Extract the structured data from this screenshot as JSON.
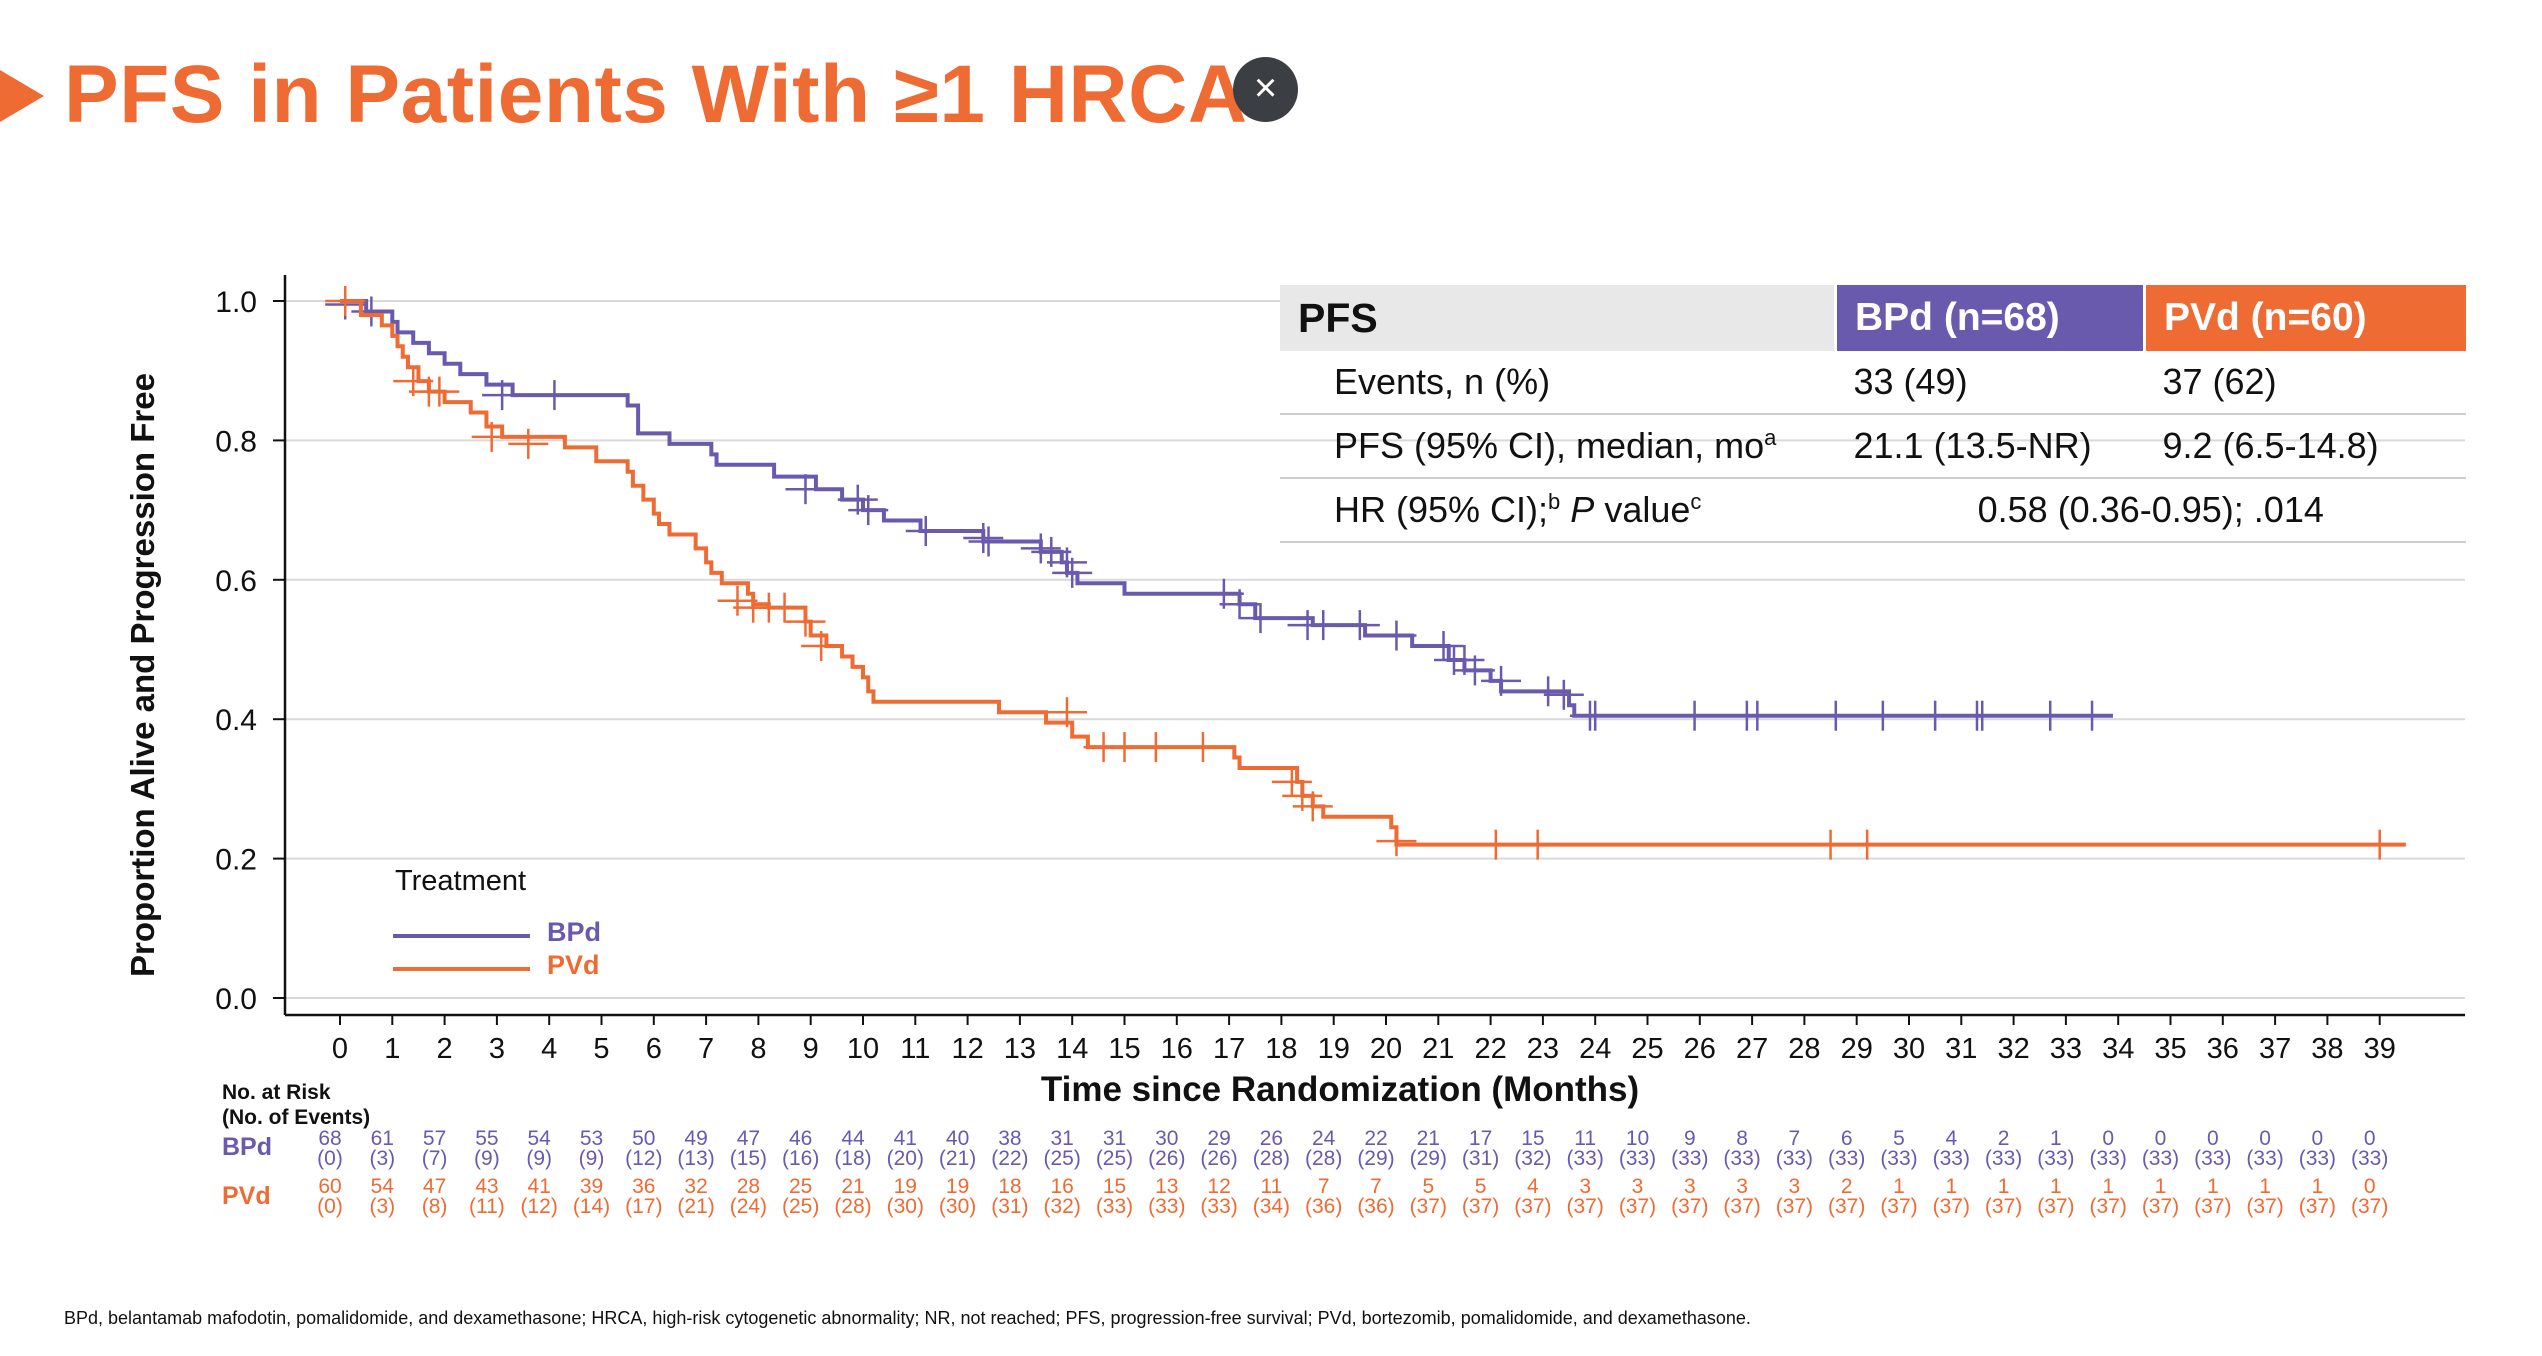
{
  "header": {
    "title": "PFS in Patients With ≥1 HRCA",
    "close_label": "×"
  },
  "table": {
    "header": [
      "PFS",
      "BPd (n=68)",
      "PVd (n=60)"
    ],
    "rows": [
      {
        "label": "Events, n (%)",
        "bpd": "33 (49)",
        "pvd": "37 (62)"
      },
      {
        "label": "PFS (95% CI), median, mo",
        "label_sup": "a",
        "bpd": "21.1 (13.5-NR)",
        "pvd": "9.2 (6.5-14.8)"
      },
      {
        "label_part1": "HR (95% CI);",
        "sup1": "b",
        "label_italic": "P",
        "label_part2": " value",
        "sup2": "c",
        "value": "0.58 (0.36-0.95); .014"
      }
    ]
  },
  "legend": {
    "title": "Treatment",
    "items": [
      {
        "label": "BPd",
        "color": "#6a5aad"
      },
      {
        "label": "PVd",
        "color": "#ee6b34"
      }
    ]
  },
  "risk_table": {
    "heading_line1": "No. at Risk",
    "heading_line2": "(No. of Events)",
    "bpd_label": "BPd",
    "pvd_label": "PVd",
    "bpd_at_risk": [
      "68",
      "61",
      "57",
      "55",
      "54",
      "53",
      "50",
      "49",
      "47",
      "46",
      "44",
      "41",
      "40",
      "38",
      "31",
      "31",
      "30",
      "29",
      "26",
      "24",
      "22",
      "21",
      "17",
      "15",
      "11",
      "10",
      "9",
      "8",
      "7",
      "6",
      "5",
      "4",
      "2",
      "1",
      "0",
      "0",
      "0",
      "0",
      "0",
      "0"
    ],
    "bpd_events": [
      "(0)",
      "(3)",
      "(7)",
      "(9)",
      "(9)",
      "(9)",
      "(12)",
      "(13)",
      "(15)",
      "(16)",
      "(18)",
      "(20)",
      "(21)",
      "(22)",
      "(25)",
      "(25)",
      "(26)",
      "(26)",
      "(28)",
      "(28)",
      "(29)",
      "(29)",
      "(31)",
      "(32)",
      "(33)",
      "(33)",
      "(33)",
      "(33)",
      "(33)",
      "(33)",
      "(33)",
      "(33)",
      "(33)",
      "(33)",
      "(33)",
      "(33)",
      "(33)",
      "(33)",
      "(33)",
      "(33)"
    ],
    "pvd_at_risk": [
      "60",
      "54",
      "47",
      "43",
      "41",
      "39",
      "36",
      "32",
      "28",
      "25",
      "21",
      "19",
      "19",
      "18",
      "16",
      "15",
      "13",
      "12",
      "11",
      "7",
      "7",
      "5",
      "5",
      "4",
      "3",
      "3",
      "3",
      "3",
      "3",
      "2",
      "1",
      "1",
      "1",
      "1",
      "1",
      "1",
      "1",
      "1",
      "1",
      "0"
    ],
    "pvd_events": [
      "(0)",
      "(3)",
      "(8)",
      "(11)",
      "(12)",
      "(14)",
      "(17)",
      "(21)",
      "(24)",
      "(25)",
      "(28)",
      "(30)",
      "(30)",
      "(31)",
      "(32)",
      "(33)",
      "(33)",
      "(33)",
      "(34)",
      "(36)",
      "(36)",
      "(37)",
      "(37)",
      "(37)",
      "(37)",
      "(37)",
      "(37)",
      "(37)",
      "(37)",
      "(37)",
      "(37)",
      "(37)",
      "(37)",
      "(37)",
      "(37)",
      "(37)",
      "(37)",
      "(37)",
      "(37)",
      "(37)"
    ]
  },
  "footnote": "BPd, belantamab mafodotin, pomalidomide, and dexamethasone; HRCA, high-risk cytogenetic abnormality; NR, not reached; PFS, progression-free survival; PVd, bortezomib, pomalidomide, and dexamethasone.",
  "chart_data": {
    "type": "line",
    "subtype": "kaplan-meier step",
    "xlabel": "Time since Randomization (Months)",
    "ylabel": "Proportion Alive and Progression Free",
    "xlim": [
      -1,
      40.5
    ],
    "ylim": [
      0,
      1.02
    ],
    "xticks": [
      0,
      1,
      2,
      3,
      4,
      5,
      6,
      7,
      8,
      9,
      10,
      11,
      12,
      13,
      14,
      15,
      16,
      17,
      18,
      19,
      20,
      21,
      22,
      23,
      24,
      25,
      26,
      27,
      28,
      29,
      30,
      31,
      32,
      33,
      34,
      35,
      36,
      37,
      38,
      39
    ],
    "yticks": [
      "0.0",
      "0.2",
      "0.4",
      "0.6",
      "0.8",
      "1.0"
    ],
    "grid": "horizontal",
    "legend_position": "bottom-left",
    "series": [
      {
        "name": "BPd",
        "color": "#6a5aad",
        "points": [
          [
            0,
            1.0
          ],
          [
            0.5,
            0.985
          ],
          [
            1,
            0.97
          ],
          [
            1.1,
            0.955
          ],
          [
            1.4,
            0.94
          ],
          [
            1.7,
            0.925
          ],
          [
            2.0,
            0.91
          ],
          [
            2.3,
            0.895
          ],
          [
            2.8,
            0.88
          ],
          [
            3.3,
            0.865
          ],
          [
            5.5,
            0.85
          ],
          [
            5.7,
            0.81
          ],
          [
            6.2,
            0.81
          ],
          [
            6.3,
            0.795
          ],
          [
            7.1,
            0.78
          ],
          [
            7.2,
            0.765
          ],
          [
            8.2,
            0.765
          ],
          [
            8.3,
            0.748
          ],
          [
            9.1,
            0.73
          ],
          [
            9.6,
            0.715
          ],
          [
            10.0,
            0.7
          ],
          [
            10.4,
            0.685
          ],
          [
            11.1,
            0.67
          ],
          [
            12.3,
            0.655
          ],
          [
            13.4,
            0.64
          ],
          [
            13.8,
            0.625
          ],
          [
            13.9,
            0.61
          ],
          [
            14.1,
            0.595
          ],
          [
            15.0,
            0.58
          ],
          [
            17.2,
            0.565
          ],
          [
            17.5,
            0.545
          ],
          [
            18.6,
            0.535
          ],
          [
            19.6,
            0.52
          ],
          [
            20.5,
            0.505
          ],
          [
            21.2,
            0.485
          ],
          [
            21.5,
            0.47
          ],
          [
            22.0,
            0.455
          ],
          [
            22.2,
            0.44
          ],
          [
            23.5,
            0.42
          ],
          [
            23.6,
            0.405
          ],
          [
            33.9,
            0.405
          ]
        ],
        "censors": [
          [
            0.1,
            0.995
          ],
          [
            0.6,
            0.985
          ],
          [
            3.1,
            0.865
          ],
          [
            4.1,
            0.865
          ],
          [
            8.9,
            0.73
          ],
          [
            9.9,
            0.715
          ],
          [
            10.1,
            0.7
          ],
          [
            11.2,
            0.67
          ],
          [
            12.3,
            0.66
          ],
          [
            12.4,
            0.655
          ],
          [
            13.4,
            0.645
          ],
          [
            13.6,
            0.64
          ],
          [
            13.9,
            0.625
          ],
          [
            14.0,
            0.61
          ],
          [
            16.9,
            0.58
          ],
          [
            17.2,
            0.565
          ],
          [
            17.6,
            0.545
          ],
          [
            18.5,
            0.535
          ],
          [
            18.8,
            0.535
          ],
          [
            19.5,
            0.535
          ],
          [
            20.2,
            0.52
          ],
          [
            21.1,
            0.505
          ],
          [
            21.3,
            0.485
          ],
          [
            21.5,
            0.485
          ],
          [
            21.7,
            0.47
          ],
          [
            22.2,
            0.455
          ],
          [
            23.1,
            0.44
          ],
          [
            23.4,
            0.435
          ],
          [
            23.9,
            0.405
          ],
          [
            24.0,
            0.405
          ],
          [
            25.9,
            0.405
          ],
          [
            26.9,
            0.405
          ],
          [
            27.1,
            0.405
          ],
          [
            28.6,
            0.405
          ],
          [
            29.5,
            0.405
          ],
          [
            30.5,
            0.405
          ],
          [
            31.3,
            0.405
          ],
          [
            31.4,
            0.405
          ],
          [
            32.7,
            0.405
          ],
          [
            33.5,
            0.405
          ]
        ],
        "tick_labels_marker": true
      },
      {
        "name": "PVd",
        "color": "#ee6b34",
        "points": [
          [
            0,
            1.0
          ],
          [
            0.4,
            0.98
          ],
          [
            0.8,
            0.965
          ],
          [
            1.0,
            0.95
          ],
          [
            1.1,
            0.935
          ],
          [
            1.2,
            0.92
          ],
          [
            1.3,
            0.905
          ],
          [
            1.5,
            0.885
          ],
          [
            1.7,
            0.87
          ],
          [
            2.0,
            0.855
          ],
          [
            2.5,
            0.84
          ],
          [
            2.8,
            0.82
          ],
          [
            3.1,
            0.805
          ],
          [
            4.3,
            0.79
          ],
          [
            4.6,
            0.79
          ],
          [
            4.9,
            0.77
          ],
          [
            5.5,
            0.755
          ],
          [
            5.6,
            0.735
          ],
          [
            5.8,
            0.715
          ],
          [
            6.0,
            0.695
          ],
          [
            6.1,
            0.68
          ],
          [
            6.3,
            0.665
          ],
          [
            6.8,
            0.645
          ],
          [
            7.0,
            0.625
          ],
          [
            7.1,
            0.61
          ],
          [
            7.3,
            0.595
          ],
          [
            7.8,
            0.58
          ],
          [
            7.9,
            0.565
          ],
          [
            8.2,
            0.56
          ],
          [
            8.9,
            0.54
          ],
          [
            9.0,
            0.52
          ],
          [
            9.3,
            0.505
          ],
          [
            9.6,
            0.49
          ],
          [
            9.8,
            0.475
          ],
          [
            10.0,
            0.46
          ],
          [
            10.1,
            0.44
          ],
          [
            10.2,
            0.425
          ],
          [
            12.6,
            0.41
          ],
          [
            13.5,
            0.395
          ],
          [
            14.0,
            0.375
          ],
          [
            14.3,
            0.36
          ],
          [
            17.1,
            0.345
          ],
          [
            17.2,
            0.33
          ],
          [
            18.3,
            0.31
          ],
          [
            18.4,
            0.29
          ],
          [
            18.6,
            0.275
          ],
          [
            18.8,
            0.26
          ],
          [
            20.1,
            0.245
          ],
          [
            20.2,
            0.22
          ],
          [
            39.5,
            0.22
          ]
        ],
        "censors": [
          [
            0.1,
            1.0
          ],
          [
            1.4,
            0.885
          ],
          [
            1.7,
            0.87
          ],
          [
            1.9,
            0.87
          ],
          [
            2.9,
            0.805
          ],
          [
            3.6,
            0.795
          ],
          [
            7.6,
            0.57
          ],
          [
            7.9,
            0.56
          ],
          [
            8.2,
            0.56
          ],
          [
            8.5,
            0.56
          ],
          [
            8.9,
            0.54
          ],
          [
            9.2,
            0.505
          ],
          [
            13.9,
            0.41
          ],
          [
            14.6,
            0.36
          ],
          [
            15.0,
            0.36
          ],
          [
            15.6,
            0.36
          ],
          [
            16.5,
            0.36
          ],
          [
            18.2,
            0.31
          ],
          [
            18.4,
            0.29
          ],
          [
            18.6,
            0.275
          ],
          [
            20.2,
            0.225
          ],
          [
            22.1,
            0.22
          ],
          [
            22.9,
            0.22
          ],
          [
            28.5,
            0.22
          ],
          [
            29.2,
            0.22
          ],
          [
            39.0,
            0.22
          ]
        ]
      }
    ]
  }
}
